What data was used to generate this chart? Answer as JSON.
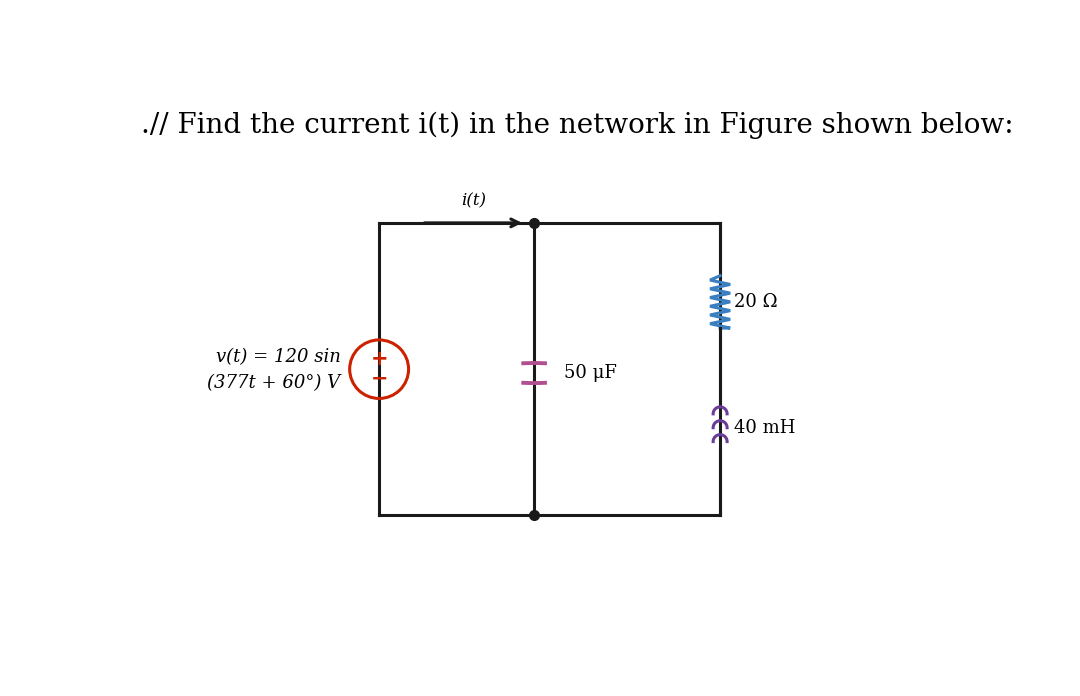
{
  "title": ".// Find the current i(t) in the network in Figure shown below:",
  "title_fontsize": 20,
  "background_color": "#ffffff",
  "circuit": {
    "voltage_source_label_line1": "v(t) = 120 sin",
    "voltage_source_label_line2": "(377t + 60°) V",
    "current_label": "i(t)",
    "capacitor_label": "50 μF",
    "resistor1_label": "20 Ω",
    "inductor_label": "40 mH",
    "wire_color": "#1a1a1a",
    "resistor_color": "#3a7fc1",
    "inductor_color": "#6a3d9a",
    "capacitor_color": "#b05090",
    "source_circle_color": "#cc2200",
    "source_plus_minus_color": "#cc2200"
  }
}
